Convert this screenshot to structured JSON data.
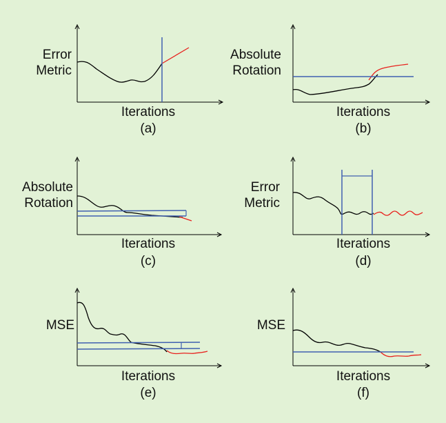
{
  "panels": [
    {
      "id": "a",
      "ylabel_lines": [
        "Error",
        "Metric"
      ],
      "xlabel": "Iterations",
      "caption": "(a)"
    },
    {
      "id": "b",
      "ylabel_lines": [
        "Absolute",
        "Rotation"
      ],
      "xlabel": "Iterations",
      "caption": "(b)"
    },
    {
      "id": "c",
      "ylabel_lines": [
        "Absolute",
        "Rotation"
      ],
      "xlabel": "Iterations",
      "caption": "(c)"
    },
    {
      "id": "d",
      "ylabel_lines": [
        "Error",
        "Metric"
      ],
      "xlabel": "Iterations",
      "caption": "(d)"
    },
    {
      "id": "e",
      "ylabel_lines": [
        "MSE"
      ],
      "xlabel": "Iterations",
      "caption": "(e)"
    },
    {
      "id": "f",
      "ylabel_lines": [
        "MSE"
      ],
      "xlabel": "Iterations",
      "caption": "(f)"
    }
  ],
  "colors": {
    "background": "#e2f2d6",
    "curve": "#000000",
    "extrapolation": "#e8201c",
    "threshold": "#3f5fb0",
    "axis": "#000000"
  }
}
